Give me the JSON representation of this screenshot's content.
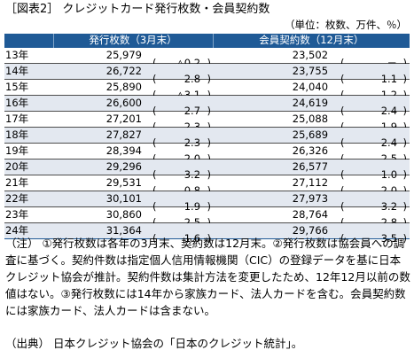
{
  "title": "［図表2］ クレジットカード発行枚数・会員契約数",
  "unit": "（単位：枚数、万件、％）",
  "headers": {
    "year": "",
    "issued": "発行枚数（3月末）",
    "members": "会員契約数（12月末）"
  },
  "rows": [
    {
      "year": "13年",
      "issued": "25,979",
      "issued_chg": "△0.2",
      "members": "23,502",
      "members_chg": "－"
    },
    {
      "year": "14年",
      "issued": "26,722",
      "issued_chg": "2.8",
      "members": "23,755",
      "members_chg": "1.1"
    },
    {
      "year": "15年",
      "issued": "25,890",
      "issued_chg": "△3.1",
      "members": "24,040",
      "members_chg": "1.2"
    },
    {
      "year": "16年",
      "issued": "26,600",
      "issued_chg": "2.7",
      "members": "24,619",
      "members_chg": "2.4"
    },
    {
      "year": "17年",
      "issued": "27,201",
      "issued_chg": "2.3",
      "members": "25,088",
      "members_chg": "1.9"
    },
    {
      "year": "18年",
      "issued": "27,827",
      "issued_chg": "2.3",
      "members": "25,689",
      "members_chg": "2.4"
    },
    {
      "year": "19年",
      "issued": "28,394",
      "issued_chg": "2.0",
      "members": "26,326",
      "members_chg": "2.5"
    },
    {
      "year": "20年",
      "issued": "29,296",
      "issued_chg": "3.2",
      "members": "26,577",
      "members_chg": "1.0"
    },
    {
      "year": "21年",
      "issued": "29,531",
      "issued_chg": "0.8",
      "members": "27,112",
      "members_chg": "2.0"
    },
    {
      "year": "22年",
      "issued": "30,101",
      "issued_chg": "1.9",
      "members": "27,973",
      "members_chg": "3.2"
    },
    {
      "year": "23年",
      "issued": "30,860",
      "issued_chg": "2.5",
      "members": "28,764",
      "members_chg": "2.8"
    },
    {
      "year": "24年",
      "issued": "31,364",
      "issued_chg": "1.6",
      "members": "29,766",
      "members_chg": "3.5"
    }
  ],
  "notes": "（注） ①発行枚数は各年の3月末、契約数は12月末。②発行枚数は協会員への調査に基づく。契約件数は指定個人信用情報機関（CIC）の登録データを基に日本クレジット協会が推計。契約件数は集計方法を変更したため、12年12月以前の数値はない。③発行枚数には14年から家族カード、法人カードを含む。会員契約数には家族カード、法人カードは含まない。",
  "source": "（出典） 日本クレジット協会の「日本のクレジット統計」。",
  "colors": {
    "header_bg": "#1f5a96",
    "header_text": "#ffffff",
    "stripe": "#e3e8f0"
  }
}
